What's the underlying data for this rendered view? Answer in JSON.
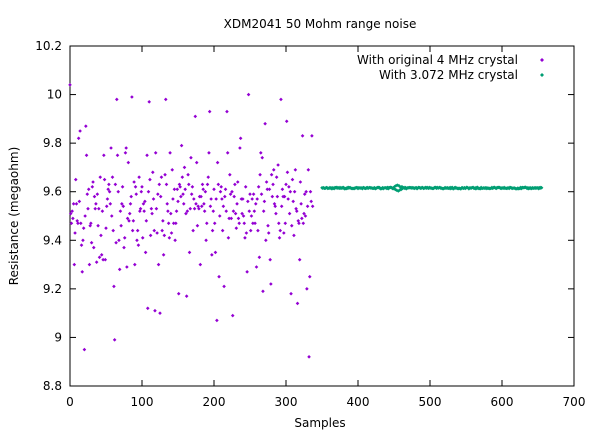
{
  "chart_data": {
    "type": "scatter",
    "title": "XDM2041 50 Mohm range noise",
    "xlabel": "Samples",
    "ylabel": "Resistance (megaohm)",
    "xlim": [
      0,
      700
    ],
    "ylim": [
      8.8,
      10.2
    ],
    "xticks": [
      0,
      100,
      200,
      300,
      400,
      500,
      600,
      700
    ],
    "yticks": [
      8.8,
      9,
      9.2,
      9.4,
      9.6,
      9.8,
      10,
      10.2
    ],
    "ytick_labels": [
      "8.8",
      "9",
      "9.2",
      "9.4",
      "9.6",
      "9.8",
      "10",
      "10.2"
    ],
    "grid": false,
    "legend_position": "top-right",
    "series": [
      {
        "name": "With original 4 MHz crystal",
        "color": "#9400d3",
        "x_start": 0,
        "x_step": 1,
        "values": [
          10.04,
          9.51,
          9.47,
          9.52,
          9.49,
          9.55,
          9.3,
          9.43,
          9.65,
          9.55,
          9.48,
          9.47,
          9.82,
          9.56,
          9.85,
          9.47,
          9.38,
          9.27,
          9.4,
          9.45,
          8.95,
          9.5,
          9.87,
          9.75,
          9.59,
          9.53,
          9.61,
          9.3,
          9.46,
          9.47,
          9.39,
          9.62,
          9.64,
          9.37,
          9.58,
          9.53,
          9.55,
          9.31,
          9.59,
          9.46,
          9.53,
          9.33,
          9.66,
          9.42,
          9.34,
          9.52,
          9.32,
          9.75,
          9.65,
          9.32,
          9.45,
          9.54,
          9.57,
          9.61,
          9.63,
          9.6,
          9.55,
          9.78,
          9.5,
          9.66,
          9.44,
          9.21,
          8.99,
          9.63,
          9.39,
          9.98,
          9.75,
          9.6,
          9.4,
          9.28,
          9.52,
          9.46,
          9.55,
          9.62,
          9.54,
          9.37,
          9.41,
          9.76,
          9.78,
          9.29,
          9.49,
          9.72,
          9.48,
          9.51,
          9.55,
          9.58,
          9.99,
          9.44,
          9.48,
          9.64,
          9.3,
          9.62,
          9.59,
          9.4,
          9.44,
          9.38,
          9.66,
          9.52,
          9.53,
          9.6,
          9.62,
          9.41,
          9.55,
          9.52,
          9.56,
          9.35,
          9.48,
          9.75,
          9.12,
          9.6,
          9.97,
          9.65,
          9.42,
          9.53,
          9.51,
          9.68,
          9.57,
          9.44,
          9.11,
          9.76,
          9.53,
          9.43,
          9.59,
          9.3,
          9.63,
          9.1,
          9.58,
          9.66,
          9.44,
          9.48,
          9.34,
          9.42,
          9.67,
          9.98,
          9.63,
          9.55,
          9.52,
          9.47,
          9.41,
          9.76,
          9.51,
          9.43,
          9.69,
          9.57,
          9.47,
          9.61,
          9.4,
          9.47,
          9.52,
          9.61,
          9.56,
          9.18,
          9.63,
          9.62,
          9.58,
          9.79,
          9.66,
          9.59,
          9.55,
          9.7,
          9.61,
          9.51,
          9.17,
          9.52,
          9.67,
          9.63,
          9.35,
          9.53,
          9.74,
          9.59,
          9.62,
          9.44,
          9.57,
          9.53,
          9.91,
          9.55,
          9.72,
          9.46,
          9.54,
          9.53,
          9.58,
          9.3,
          9.58,
          9.54,
          9.63,
          9.61,
          9.55,
          9.52,
          9.6,
          9.4,
          9.47,
          9.63,
          9.66,
          9.76,
          9.93,
          9.54,
          9.57,
          9.34,
          9.44,
          9.52,
          9.61,
          9.47,
          9.35,
          9.57,
          9.07,
          9.72,
          9.63,
          9.25,
          9.5,
          9.6,
          9.62,
          9.57,
          9.44,
          9.54,
          9.21,
          9.58,
          9.61,
          9.52,
          9.93,
          9.76,
          9.41,
          9.49,
          9.67,
          9.59,
          9.49,
          9.6,
          9.09,
          9.52,
          9.58,
          9.63,
          9.51,
          9.45,
          9.55,
          9.64,
          9.49,
          9.47,
          9.78,
          9.82,
          9.57,
          9.51,
          9.57,
          9.5,
          9.47,
          9.41,
          9.62,
          9.43,
          9.27,
          9.56,
          10.0,
          9.52,
          9.59,
          9.44,
          9.5,
          9.57,
          9.47,
          9.59,
          9.52,
          9.47,
          9.55,
          9.29,
          9.57,
          9.44,
          9.62,
          9.33,
          9.67,
          9.76,
          9.59,
          9.74,
          9.19,
          9.52,
          9.56,
          9.88,
          9.4,
          9.64,
          9.61,
          9.46,
          9.43,
          9.61,
          9.32,
          9.22,
          9.67,
          9.58,
          9.63,
          9.69,
          9.55,
          9.54,
          9.51,
          9.66,
          9.58,
          9.71,
          9.47,
          9.41,
          9.44,
          9.98,
          9.54,
          9.61,
          9.58,
          9.43,
          9.58,
          9.47,
          9.63,
          9.89,
          9.68,
          9.57,
          9.62,
          9.51,
          9.6,
          9.18,
          9.46,
          9.65,
          9.56,
          9.42,
          9.6,
          9.69,
          9.53,
          9.52,
          9.14,
          9.48,
          9.47,
          9.32,
          9.64,
          9.55,
          9.49,
          9.83,
          9.47,
          9.51,
          9.59,
          9.5,
          9.6,
          9.2,
          9.54,
          9.69,
          8.92,
          9.25,
          9.6,
          9.56,
          9.83,
          9.54
        ]
      },
      {
        "name": "With 3.072 MHz crystal",
        "color": "#009e73",
        "x_start": 350,
        "x_end": 655,
        "level": 9.615,
        "noise": 0.003,
        "disturbance_center": 455,
        "disturbance_amplitude": 0.012
      }
    ]
  }
}
